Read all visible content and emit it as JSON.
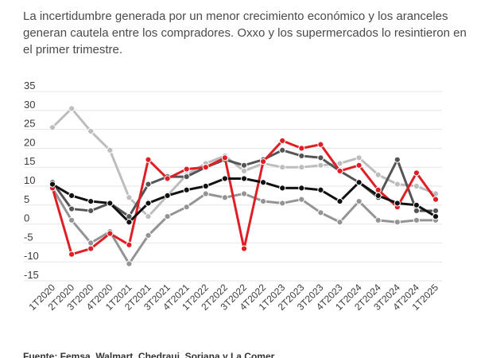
{
  "subtitle": "La incertidumbre generada por un menor crecimiento económico y los aranceles generan cautela entre los compradores. Oxxo y los supermercados lo resintieron en el primer trimestre.",
  "source": "Fuente: Femsa, Walmart, Chedraui, Soriana y La Comer.",
  "chart_data": {
    "type": "line",
    "categories": [
      "1T2020",
      "2T2020",
      "3T2020",
      "4T2020",
      "1T2021",
      "2T2021",
      "3T2021",
      "4T2021",
      "1T2022",
      "2T2022",
      "3T2022",
      "4T2022",
      "1T2023",
      "2T2023",
      "3T2023",
      "4T2023",
      "1T2024",
      "2T2024",
      "3T2024",
      "4T2024",
      "1T2025"
    ],
    "y_ticks": [
      35,
      30,
      25,
      20,
      15,
      10,
      5,
      0,
      -5,
      -10,
      -15
    ],
    "ylim": [
      -15,
      35
    ],
    "grid": true,
    "series": [
      {
        "color": "#bdbdbd",
        "values": [
          25.5,
          30.5,
          24.5,
          19.5,
          7,
          2,
          7.5,
          13,
          16,
          18,
          14,
          16,
          15,
          15,
          15.5,
          16,
          17.5,
          13,
          10.5,
          10,
          8
        ]
      },
      {
        "color": "#949494",
        "values": [
          9.5,
          1,
          -5,
          -2,
          -10.5,
          -3,
          2,
          4.5,
          8,
          7,
          8,
          6,
          5.5,
          6.5,
          3,
          0.5,
          6,
          1,
          0.5,
          1,
          1
        ]
      },
      {
        "color": "#555555",
        "values": [
          11,
          4,
          3.5,
          5.5,
          2,
          10.5,
          12.5,
          12.5,
          15,
          17,
          15.5,
          17,
          19.5,
          18,
          17.5,
          14,
          11,
          7,
          17,
          3.5,
          3.5
        ]
      },
      {
        "color": "#e01e26",
        "values": [
          9.5,
          -8,
          -6.5,
          -2.5,
          -5.5,
          17,
          12,
          14.5,
          15,
          17.5,
          -6.5,
          16.5,
          22,
          20,
          21,
          14,
          15.5,
          9,
          4.5,
          13.5,
          6.5
        ]
      },
      {
        "color": "#111111",
        "values": [
          10.5,
          7.5,
          6,
          5.5,
          0.5,
          5.5,
          7.5,
          9,
          10,
          12,
          12,
          11,
          9.5,
          9.5,
          9,
          6,
          11,
          7.5,
          5.5,
          5,
          2
        ]
      }
    ]
  }
}
